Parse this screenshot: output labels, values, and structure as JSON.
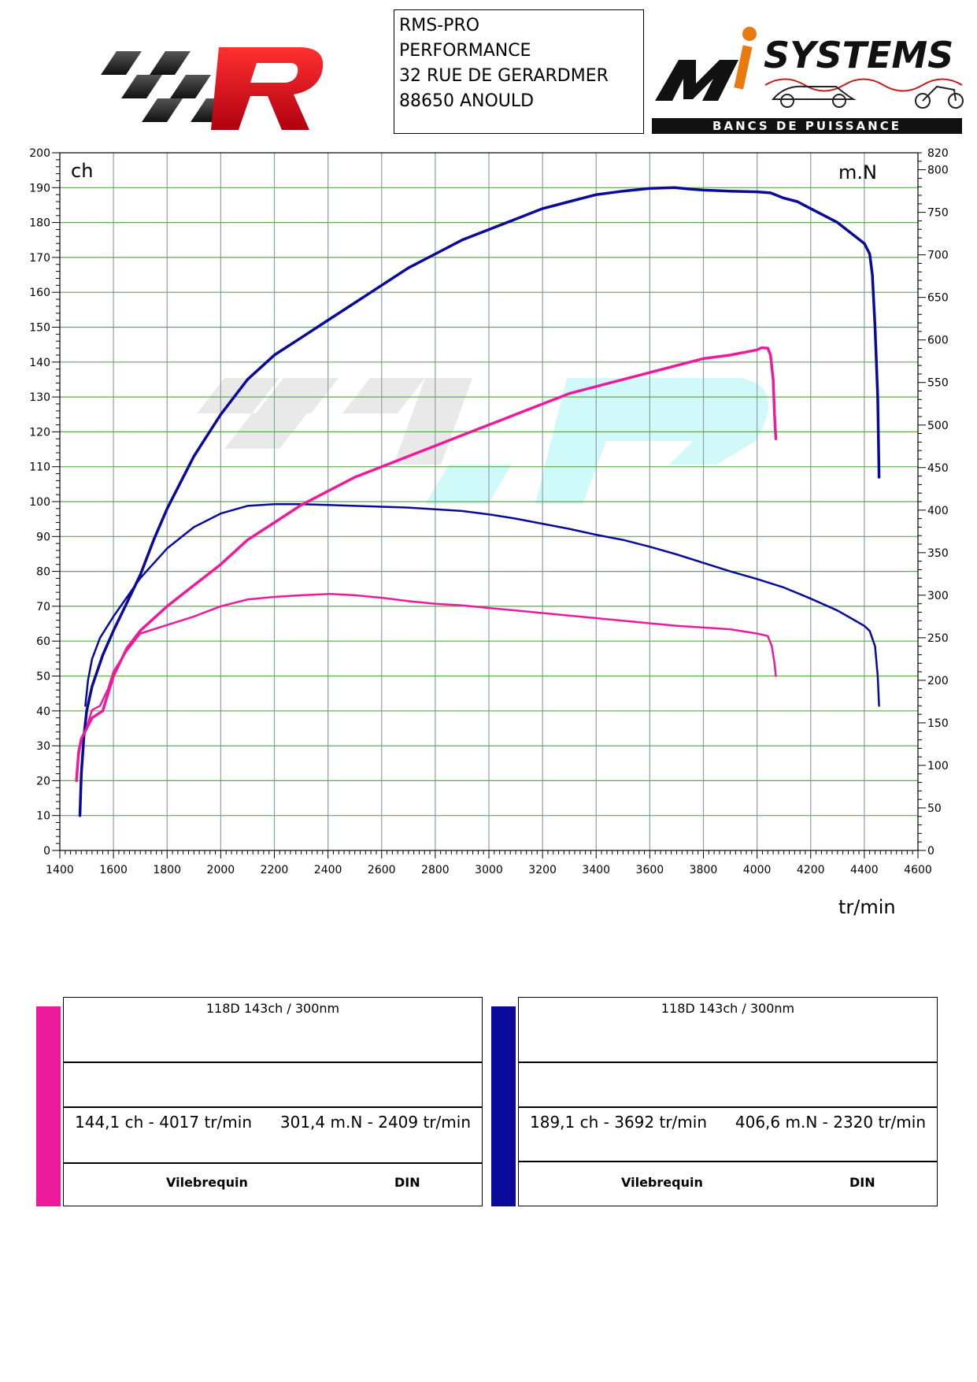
{
  "header": {
    "address_lines": [
      "RMS-PRO",
      "PERFORMANCE",
      "32 RUE DE GERARDMER",
      "88650 ANOULD"
    ],
    "logo_right_text": "SYSTEMS",
    "logo_right_sub": "BANCS DE PUISSANCE"
  },
  "chart_data": {
    "type": "line",
    "left_axis_label": "ch",
    "right_axis_label": "m.N",
    "x_axis_label": "tr/min",
    "xlim": [
      1400,
      4600
    ],
    "ylim_left": [
      0,
      200
    ],
    "ylim_right": [
      0,
      820
    ],
    "x_ticks": [
      1400,
      1600,
      1800,
      2000,
      2200,
      2400,
      2600,
      2800,
      3000,
      3200,
      3400,
      3600,
      3800,
      4000,
      4200,
      4400,
      4600
    ],
    "y_left_ticks": [
      0,
      10,
      20,
      30,
      40,
      50,
      60,
      70,
      80,
      90,
      100,
      110,
      120,
      130,
      140,
      150,
      160,
      170,
      180,
      190,
      200
    ],
    "y_right_ticks": [
      0,
      50,
      100,
      150,
      200,
      250,
      300,
      350,
      400,
      450,
      500,
      550,
      600,
      650,
      700,
      750,
      800,
      820
    ],
    "grid": true,
    "colors": {
      "pink": "#ee1a9c",
      "blue": "#0a0a9a"
    },
    "series": [
      {
        "color": "#0a0a9a",
        "axis": "left",
        "kind": "power",
        "points": [
          [
            1475,
            10
          ],
          [
            1480,
            22
          ],
          [
            1490,
            33
          ],
          [
            1500,
            40
          ],
          [
            1520,
            47
          ],
          [
            1560,
            56
          ],
          [
            1600,
            63
          ],
          [
            1650,
            71
          ],
          [
            1700,
            79
          ],
          [
            1750,
            89
          ],
          [
            1800,
            98
          ],
          [
            1900,
            113
          ],
          [
            2000,
            125
          ],
          [
            2100,
            135
          ],
          [
            2200,
            142
          ],
          [
            2300,
            147
          ],
          [
            2400,
            152
          ],
          [
            2500,
            157
          ],
          [
            2600,
            162
          ],
          [
            2700,
            167
          ],
          [
            2800,
            171
          ],
          [
            2900,
            175
          ],
          [
            3000,
            178
          ],
          [
            3100,
            181
          ],
          [
            3200,
            184
          ],
          [
            3300,
            186
          ],
          [
            3400,
            188
          ],
          [
            3500,
            189
          ],
          [
            3600,
            189.8
          ],
          [
            3692,
            190
          ],
          [
            3750,
            189.6
          ],
          [
            3800,
            189.3
          ],
          [
            3900,
            189
          ],
          [
            4000,
            188.8
          ],
          [
            4050,
            188.5
          ],
          [
            4100,
            187
          ],
          [
            4150,
            186
          ],
          [
            4200,
            184
          ],
          [
            4250,
            182
          ],
          [
            4300,
            180
          ],
          [
            4350,
            177
          ],
          [
            4400,
            174
          ],
          [
            4420,
            171
          ],
          [
            4430,
            165
          ],
          [
            4440,
            150
          ],
          [
            4450,
            130
          ],
          [
            4455,
            107
          ]
        ]
      },
      {
        "color": "#0a0a9a",
        "axis": "right",
        "kind": "torque",
        "points": [
          [
            1495,
            170
          ],
          [
            1505,
            200
          ],
          [
            1520,
            225
          ],
          [
            1550,
            250
          ],
          [
            1600,
            275
          ],
          [
            1700,
            320
          ],
          [
            1800,
            355
          ],
          [
            1900,
            380
          ],
          [
            2000,
            396
          ],
          [
            2100,
            405
          ],
          [
            2200,
            407
          ],
          [
            2300,
            407
          ],
          [
            2400,
            406
          ],
          [
            2500,
            405
          ],
          [
            2600,
            404
          ],
          [
            2700,
            403
          ],
          [
            2800,
            401
          ],
          [
            2900,
            399
          ],
          [
            3000,
            395
          ],
          [
            3100,
            390
          ],
          [
            3200,
            384
          ],
          [
            3300,
            378
          ],
          [
            3400,
            371
          ],
          [
            3500,
            365
          ],
          [
            3600,
            357
          ],
          [
            3700,
            348
          ],
          [
            3800,
            338
          ],
          [
            3900,
            328
          ],
          [
            4000,
            319
          ],
          [
            4100,
            309
          ],
          [
            4200,
            296
          ],
          [
            4300,
            282
          ],
          [
            4350,
            273
          ],
          [
            4400,
            264
          ],
          [
            4420,
            258
          ],
          [
            4440,
            240
          ],
          [
            4450,
            205
          ],
          [
            4455,
            170
          ]
        ]
      },
      {
        "color": "#ee1a9c",
        "axis": "left",
        "kind": "power",
        "points": [
          [
            1462,
            20
          ],
          [
            1470,
            28
          ],
          [
            1480,
            32
          ],
          [
            1500,
            35
          ],
          [
            1520,
            38
          ],
          [
            1560,
            40
          ],
          [
            1580,
            45
          ],
          [
            1600,
            50
          ],
          [
            1650,
            58
          ],
          [
            1700,
            63
          ],
          [
            1800,
            70
          ],
          [
            1900,
            76
          ],
          [
            2000,
            82
          ],
          [
            2100,
            89
          ],
          [
            2200,
            94
          ],
          [
            2300,
            99
          ],
          [
            2400,
            103
          ],
          [
            2500,
            107
          ],
          [
            2600,
            110
          ],
          [
            2700,
            113
          ],
          [
            2800,
            116
          ],
          [
            2900,
            119
          ],
          [
            3000,
            122
          ],
          [
            3100,
            125
          ],
          [
            3200,
            128
          ],
          [
            3300,
            131
          ],
          [
            3400,
            133
          ],
          [
            3500,
            135
          ],
          [
            3600,
            137
          ],
          [
            3700,
            139
          ],
          [
            3800,
            141
          ],
          [
            3900,
            142
          ],
          [
            4000,
            143.5
          ],
          [
            4017,
            144.1
          ],
          [
            4040,
            144
          ],
          [
            4050,
            142
          ],
          [
            4060,
            135
          ],
          [
            4065,
            125
          ],
          [
            4070,
            118
          ]
        ]
      },
      {
        "color": "#ee1a9c",
        "axis": "right",
        "kind": "torque",
        "points": [
          [
            1462,
            85
          ],
          [
            1470,
            110
          ],
          [
            1480,
            130
          ],
          [
            1500,
            145
          ],
          [
            1520,
            165
          ],
          [
            1550,
            170
          ],
          [
            1580,
            190
          ],
          [
            1600,
            210
          ],
          [
            1650,
            235
          ],
          [
            1700,
            255
          ],
          [
            1800,
            265
          ],
          [
            1900,
            275
          ],
          [
            2000,
            287
          ],
          [
            2100,
            295
          ],
          [
            2200,
            298
          ],
          [
            2300,
            300
          ],
          [
            2409,
            301.4
          ],
          [
            2500,
            300
          ],
          [
            2600,
            297
          ],
          [
            2700,
            293
          ],
          [
            2800,
            290
          ],
          [
            2900,
            288
          ],
          [
            3000,
            285
          ],
          [
            3100,
            282
          ],
          [
            3200,
            279
          ],
          [
            3300,
            276
          ],
          [
            3400,
            273
          ],
          [
            3500,
            270
          ],
          [
            3600,
            267
          ],
          [
            3700,
            264
          ],
          [
            3800,
            262
          ],
          [
            3900,
            260
          ],
          [
            4000,
            255
          ],
          [
            4040,
            252
          ],
          [
            4055,
            240
          ],
          [
            4065,
            220
          ],
          [
            4070,
            205
          ]
        ]
      }
    ]
  },
  "cards": [
    {
      "color": "#ee1a9c",
      "title": "118D 143ch / 300nm",
      "peak_power": "144,1 ch - 4017 tr/min",
      "peak_torque": "301,4 m.N - 2409 tr/min",
      "foot_left": "Vilebrequin",
      "foot_right": "DIN"
    },
    {
      "color": "#0a0a9a",
      "title": "118D 143ch / 300nm",
      "peak_power": "189,1 ch - 3692 tr/min",
      "peak_torque": "406,6 m.N - 2320 tr/min",
      "foot_left": "Vilebrequin",
      "foot_right": "DIN"
    }
  ]
}
